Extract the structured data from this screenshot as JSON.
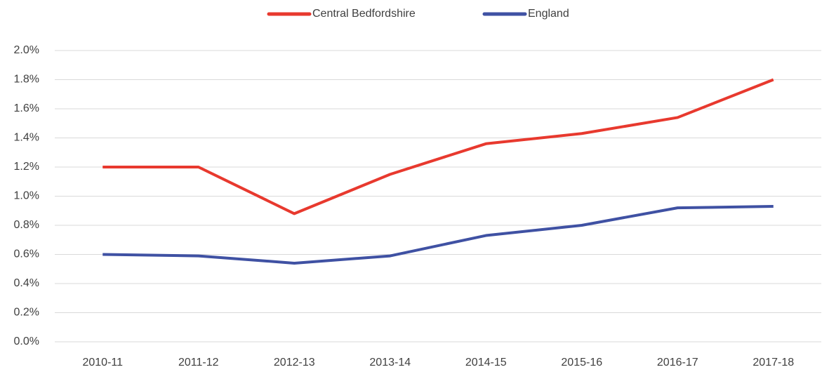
{
  "chart_data": {
    "type": "line",
    "categories": [
      "2010-11",
      "2011-12",
      "2012-13",
      "2013-14",
      "2014-15",
      "2015-16",
      "2016-17",
      "2017-18"
    ],
    "series": [
      {
        "name": "Central Bedfordshire",
        "color": "#e8392e",
        "values": [
          1.2,
          1.2,
          0.88,
          1.15,
          1.36,
          1.43,
          1.54,
          1.8
        ]
      },
      {
        "name": "England",
        "color": "#3f51a3",
        "values": [
          0.6,
          0.59,
          0.54,
          0.59,
          0.73,
          0.8,
          0.92,
          0.93
        ]
      }
    ],
    "ylim": [
      0,
      2.0
    ],
    "yticks": [
      {
        "value": 0,
        "label": "0.0%"
      },
      {
        "value": 0.2,
        "label": "0.2%"
      },
      {
        "value": 0.4,
        "label": "0.4%"
      },
      {
        "value": 0.6,
        "label": "0.6%"
      },
      {
        "value": 0.8,
        "label": "0.8%"
      },
      {
        "value": 1.0,
        "label": "1.0%"
      },
      {
        "value": 1.2,
        "label": "1.2%"
      },
      {
        "value": 1.4,
        "label": "1.4%"
      },
      {
        "value": 1.6,
        "label": "1.6%"
      },
      {
        "value": 1.8,
        "label": "1.8%"
      },
      {
        "value": 2.0,
        "label": "2.0%"
      }
    ],
    "grid": true,
    "legend": "top"
  }
}
